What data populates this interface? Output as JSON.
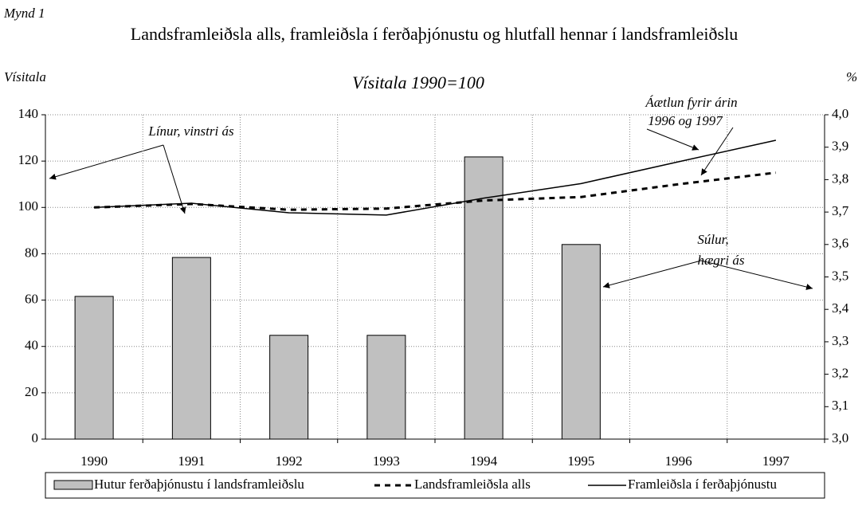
{
  "chart_data": {
    "type": "bar-line",
    "label": "Mynd 1",
    "title": "Landsframleiðsla alls, framleiðsla í  ferðaþjónustu og hlutfall hennar í landsframleiðslu",
    "subtitle": "Vísitala 1990=100",
    "ylabel": "Vísitala",
    "y2label": "%",
    "categories": [
      "1990",
      "1991",
      "1992",
      "1993",
      "1994",
      "1995",
      "1996",
      "1997"
    ],
    "series": [
      {
        "name": "Hutur ferðaþjónustu í landsframleiðslu",
        "type": "bar",
        "axis": "y2",
        "color": "#c0c0c0",
        "values": [
          3.44,
          3.56,
          3.32,
          3.32,
          3.87,
          3.6,
          null,
          null
        ]
      },
      {
        "name": "Landsframleiðsla alls",
        "type": "line",
        "dashed": true,
        "axis": "y",
        "color": "#000000",
        "values": [
          100,
          101.5,
          99,
          99.5,
          103,
          104.5,
          110,
          115
        ]
      },
      {
        "name": "Framleiðsla  í ferðaþjónustu",
        "type": "line",
        "dashed": false,
        "axis": "y",
        "color": "#000000",
        "values": [
          100,
          101.8,
          97.7,
          96.7,
          104,
          110.3,
          119.7,
          129
        ]
      }
    ],
    "ylim": [
      0,
      140
    ],
    "yticks": [
      0,
      20,
      40,
      60,
      80,
      100,
      120,
      140
    ],
    "y2lim": [
      3.0,
      4.0
    ],
    "y2ticks": [
      {
        "value": 3.0,
        "label": "3,0"
      },
      {
        "value": 3.1,
        "label": "3,1"
      },
      {
        "value": 3.2,
        "label": "3,2"
      },
      {
        "value": 3.3,
        "label": "3,3"
      },
      {
        "value": 3.4,
        "label": "3,4"
      },
      {
        "value": 3.5,
        "label": "3,5"
      },
      {
        "value": 3.6,
        "label": "3,6"
      },
      {
        "value": 3.7,
        "label": "3,7"
      },
      {
        "value": 3.8,
        "label": "3,8"
      },
      {
        "value": 3.9,
        "label": "3,9"
      },
      {
        "value": 4.0,
        "label": "4,0"
      }
    ],
    "grid": true,
    "legend": "bottom",
    "annotations": [
      "Línur, vinstri ás",
      "Áætlun fyrir árin",
      "1996 og 1997",
      "Súlur,",
      "hægri ás"
    ]
  }
}
